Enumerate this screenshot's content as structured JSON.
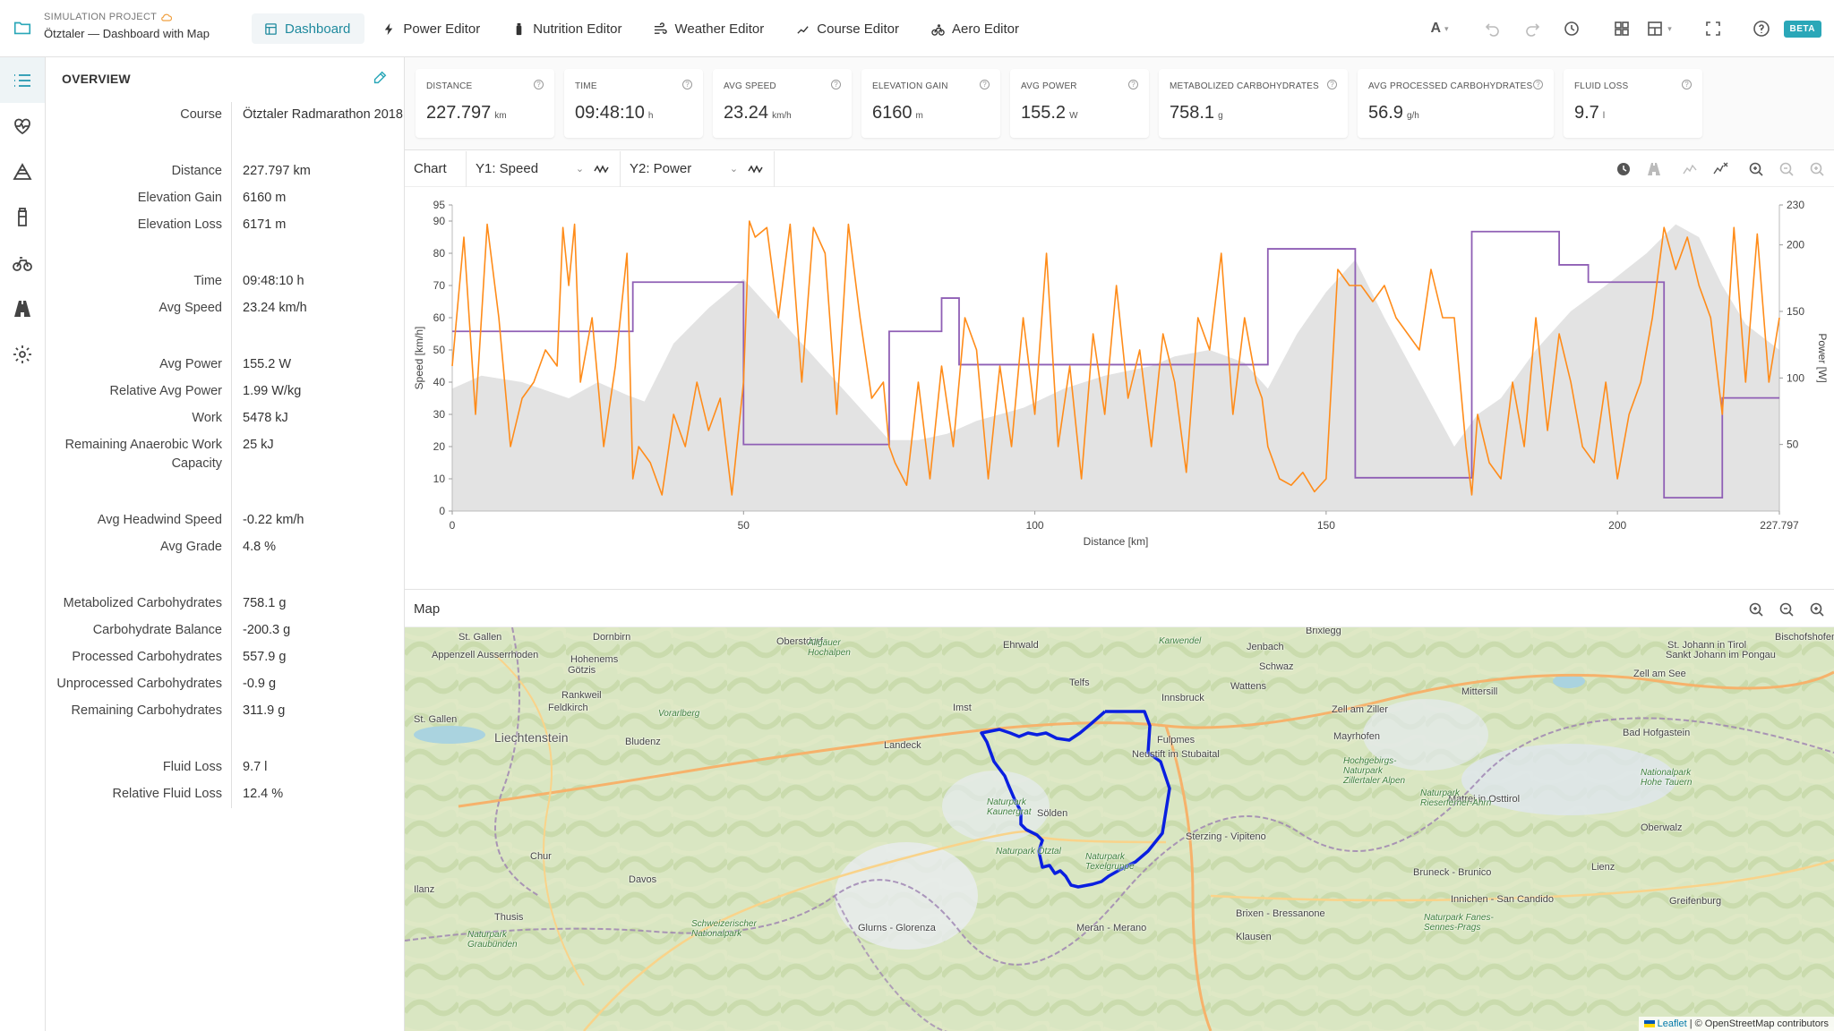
{
  "header": {
    "project_label": "SIMULATION PROJECT",
    "project_title": "Ötztaler — Dashboard with Map",
    "tabs": [
      {
        "label": "Dashboard",
        "icon": "dashboard-icon"
      },
      {
        "label": "Power Editor",
        "icon": "bolt-icon"
      },
      {
        "label": "Nutrition Editor",
        "icon": "bottle-icon"
      },
      {
        "label": "Weather Editor",
        "icon": "wind-icon"
      },
      {
        "label": "Course Editor",
        "icon": "route-icon"
      },
      {
        "label": "Aero Editor",
        "icon": "cyclist-icon"
      }
    ],
    "lang_label": "A",
    "beta_label": "BETA"
  },
  "overview": {
    "title": "OVERVIEW",
    "groups": [
      [
        {
          "k": "Course",
          "v": "Ötztaler Radmarathon 2018"
        }
      ],
      [
        {
          "k": "Distance",
          "v": "227.797 km"
        },
        {
          "k": "Elevation Gain",
          "v": "6160 m"
        },
        {
          "k": "Elevation Loss",
          "v": "6171 m"
        }
      ],
      [
        {
          "k": "Time",
          "v": "09:48:10 h"
        },
        {
          "k": "Avg Speed",
          "v": "23.24 km/h"
        }
      ],
      [
        {
          "k": "Avg Power",
          "v": "155.2 W"
        },
        {
          "k": "Relative Avg Power",
          "v": "1.99 W/kg"
        },
        {
          "k": "Work",
          "v": "5478 kJ"
        },
        {
          "k": "Remaining Anaerobic Work Capacity",
          "v": "25 kJ"
        }
      ],
      [
        {
          "k": "Avg Headwind Speed",
          "v": "-0.22 km/h"
        },
        {
          "k": "Avg Grade",
          "v": "4.8 %"
        }
      ],
      [
        {
          "k": "Metabolized Carbohydrates",
          "v": "758.1 g"
        },
        {
          "k": "Carbohydrate Balance",
          "v": "-200.3 g"
        },
        {
          "k": "Processed Carbohydrates",
          "v": "557.9 g"
        },
        {
          "k": "Unprocessed Carbohydrates",
          "v": "-0.9 g"
        },
        {
          "k": "Remaining Carbohydrates",
          "v": "311.9 g"
        }
      ],
      [
        {
          "k": "Fluid Loss",
          "v": "9.7 l"
        },
        {
          "k": "Relative Fluid Loss",
          "v": "12.4 %"
        }
      ]
    ]
  },
  "cards": [
    {
      "label": "DISTANCE",
      "value": "227.797",
      "unit": "km"
    },
    {
      "label": "TIME",
      "value": "09:48:10",
      "unit": "h"
    },
    {
      "label": "AVG SPEED",
      "value": "23.24",
      "unit": "km/h"
    },
    {
      "label": "ELEVATION GAIN",
      "value": "6160",
      "unit": "m"
    },
    {
      "label": "AVG POWER",
      "value": "155.2",
      "unit": "W"
    },
    {
      "label": "METABOLIZED CARBOHYDRATES",
      "value": "758.1",
      "unit": "g"
    },
    {
      "label": "AVG PROCESSED CARBOHYDRATES",
      "value": "56.9",
      "unit": "g/h"
    },
    {
      "label": "FLUID LOSS",
      "value": "9.7",
      "unit": "l"
    }
  ],
  "chart_panel": {
    "title": "Chart",
    "y1_select": "Y1: Speed",
    "y2_select": "Y2: Power"
  },
  "chart_data": {
    "type": "line",
    "xlabel": "Distance [km]",
    "ylabel": "Speed [km/h]",
    "y2label": "Power [W]",
    "xlim": [
      0,
      227.797
    ],
    "ylim": [
      0,
      95
    ],
    "y2lim": [
      0,
      230
    ],
    "x_ticks": [
      "0",
      "50",
      "100",
      "150",
      "200",
      "227.797"
    ],
    "x_tick_values": [
      0,
      50,
      100,
      150,
      200,
      227.797
    ],
    "y_ticks": [
      0,
      10,
      20,
      30,
      40,
      50,
      60,
      70,
      80,
      90,
      95
    ],
    "y2_ticks": [
      50,
      100,
      150,
      200,
      230
    ],
    "colors": {
      "speed": "#ff8c1a",
      "power": "#8f5fb5",
      "elevation": "#e3e3e3"
    },
    "elevation_profile": {
      "x": [
        0,
        5,
        12,
        20,
        25,
        30,
        33,
        38,
        44,
        50,
        55,
        60,
        66,
        72,
        75,
        80,
        85,
        90,
        98,
        105,
        112,
        120,
        124,
        130,
        136,
        140,
        145,
        150,
        155,
        160,
        166,
        172,
        176,
        180,
        186,
        192,
        198,
        205,
        210,
        214,
        218,
        222,
        227.797
      ],
      "y": [
        38,
        42,
        40,
        35,
        40,
        36,
        34,
        52,
        63,
        72,
        62,
        52,
        40,
        28,
        22,
        22,
        24,
        28,
        32,
        38,
        42,
        45,
        48,
        50,
        46,
        38,
        55,
        68,
        78,
        60,
        40,
        20,
        30,
        35,
        50,
        62,
        70,
        80,
        89,
        85,
        70,
        58,
        50
      ]
    },
    "series": [
      {
        "name": "Y1: Speed",
        "axis": "y1",
        "x": [
          0,
          2,
          4,
          6,
          8,
          10,
          12,
          14,
          16,
          18,
          19,
          20,
          21,
          22,
          24,
          26,
          28,
          30,
          31,
          32,
          34,
          36,
          38,
          40,
          42,
          44,
          46,
          48,
          50,
          51,
          52,
          54,
          56,
          58,
          60,
          62,
          64,
          66,
          68,
          70,
          72,
          74,
          75,
          76,
          78,
          80,
          82,
          84,
          86,
          88,
          90,
          92,
          94,
          96,
          98,
          100,
          102,
          104,
          106,
          108,
          110,
          112,
          114,
          116,
          118,
          120,
          122,
          124,
          126,
          128,
          130,
          132,
          134,
          136,
          138,
          139,
          140,
          142,
          144,
          146,
          148,
          150,
          152,
          154,
          156,
          158,
          160,
          162,
          164,
          166,
          168,
          170,
          172,
          174,
          175,
          176,
          178,
          180,
          182,
          184,
          186,
          188,
          190,
          192,
          194,
          196,
          198,
          200,
          202,
          204,
          206,
          208,
          210,
          212,
          214,
          216,
          218,
          220,
          222,
          224,
          226,
          227.797
        ],
        "y": [
          45,
          85,
          30,
          89,
          60,
          20,
          35,
          40,
          50,
          45,
          88,
          70,
          89,
          40,
          60,
          20,
          45,
          80,
          10,
          20,
          15,
          5,
          30,
          20,
          40,
          25,
          35,
          5,
          40,
          90,
          85,
          88,
          60,
          89,
          40,
          88,
          80,
          30,
          89,
          60,
          35,
          40,
          20,
          15,
          8,
          40,
          10,
          45,
          20,
          60,
          50,
          10,
          45,
          20,
          60,
          30,
          80,
          20,
          45,
          10,
          55,
          30,
          70,
          35,
          50,
          20,
          55,
          40,
          12,
          60,
          50,
          80,
          30,
          60,
          40,
          35,
          20,
          10,
          8,
          12,
          6,
          10,
          75,
          70,
          70,
          65,
          70,
          60,
          55,
          50,
          75,
          60,
          60,
          20,
          5,
          30,
          15,
          10,
          40,
          20,
          60,
          25,
          55,
          40,
          20,
          15,
          40,
          10,
          30,
          40,
          60,
          88,
          75,
          85,
          70,
          60,
          30,
          88,
          40,
          86,
          40,
          60
        ]
      },
      {
        "name": "Y2: Power",
        "axis": "y2",
        "x": [
          0,
          31,
          31,
          50,
          50,
          75,
          75,
          84,
          84,
          87,
          87,
          122,
          122,
          140,
          140,
          155,
          155,
          175,
          175,
          190,
          190,
          195,
          195,
          208,
          208,
          218,
          218,
          227.797
        ],
        "y": [
          135,
          135,
          172,
          172,
          50,
          50,
          135,
          135,
          160,
          160,
          110,
          110,
          110,
          110,
          197,
          197,
          25,
          25,
          210,
          210,
          185,
          185,
          172,
          172,
          10,
          10,
          85,
          85
        ]
      }
    ]
  },
  "map_panel": {
    "title": "Map",
    "attribution_leaflet": "Leaflet",
    "attribution_rest": "| © OpenStreetMap contributors",
    "labels": [
      {
        "t": "St. Gallen"
      },
      {
        "t": "Dornbirn"
      },
      {
        "t": "Oberstdorf"
      },
      {
        "t": "Allgäuer Hochalpen"
      },
      {
        "t": "Ehrwald"
      },
      {
        "t": "Karwendel"
      },
      {
        "t": "Jenbach"
      },
      {
        "t": "Brixlegg"
      },
      {
        "t": "Bischofshofen"
      },
      {
        "t": "Appenzell Ausserrhoden"
      },
      {
        "t": "Hohenems"
      },
      {
        "t": "Götzis"
      },
      {
        "t": "Telfs"
      },
      {
        "t": "Schwaz"
      },
      {
        "t": "Innsbruck"
      },
      {
        "t": "Wattens"
      },
      {
        "t": "Rankweil"
      },
      {
        "t": "Feldkirch"
      },
      {
        "t": "Imst"
      },
      {
        "t": "Zell am See"
      },
      {
        "t": "Mittersill"
      },
      {
        "t": "Vorarlberg"
      },
      {
        "t": "St. Gallen"
      },
      {
        "t": "Zell am Ziller"
      },
      {
        "t": "Liechtenstein"
      },
      {
        "t": "Bludenz"
      },
      {
        "t": "Landeck"
      },
      {
        "t": "Fulpmes"
      },
      {
        "t": "Mayrhofen"
      },
      {
        "t": "Neustift im Stubaital"
      },
      {
        "t": "Bad Hofgastein"
      },
      {
        "t": "Hochgebirgs-Naturpark Zillertaler Alpen"
      },
      {
        "t": "Nationalpark Hohe Tauern"
      },
      {
        "t": "Naturpark Kaunergrat"
      },
      {
        "t": "Matrei in Osttirol"
      },
      {
        "t": "Sölden"
      },
      {
        "t": "Naturpark Rieserferner-Ahrn"
      },
      {
        "t": "Sterzing - Vipiteno"
      },
      {
        "t": "Naturpark Ötztal"
      },
      {
        "t": "Chur"
      },
      {
        "t": "Naturpark Texelgruppe"
      },
      {
        "t": "Lienz"
      },
      {
        "t": "Bruneck - Brunico"
      },
      {
        "t": "Ilanz"
      },
      {
        "t": "Davos"
      },
      {
        "t": "Innichen - San Candido"
      },
      {
        "t": "Brixen - Bressanone"
      },
      {
        "t": "Thusis"
      },
      {
        "t": "Schweizerischer Nationalpark"
      },
      {
        "t": "Glurns - Glorenza"
      },
      {
        "t": "Meran - Merano"
      },
      {
        "t": "Klausen"
      },
      {
        "t": "Naturpark Fanes-Sennes-Prags"
      },
      {
        "t": "Oberwalz"
      },
      {
        "t": "Greifenburg"
      },
      {
        "t": "Sankt Johann im Pongau"
      },
      {
        "t": "St. Johann in Tirol"
      },
      {
        "t": "Naturpark Graubünden"
      }
    ]
  }
}
